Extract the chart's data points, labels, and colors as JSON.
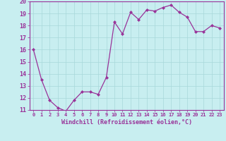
{
  "x": [
    0,
    1,
    2,
    3,
    4,
    5,
    6,
    7,
    8,
    9,
    10,
    11,
    12,
    13,
    14,
    15,
    16,
    17,
    18,
    19,
    20,
    21,
    22,
    23
  ],
  "y": [
    16.0,
    13.5,
    11.8,
    11.2,
    10.9,
    11.8,
    12.5,
    12.5,
    12.3,
    13.7,
    18.3,
    17.3,
    19.1,
    18.5,
    19.3,
    19.2,
    19.5,
    19.7,
    19.1,
    18.7,
    17.5,
    17.5,
    18.0,
    17.8
  ],
  "line_color": "#993399",
  "marker": "D",
  "marker_size": 2,
  "bg_color": "#c8eef0",
  "grid_color": "#a8d8da",
  "xlabel": "Windchill (Refroidissement éolien,°C)",
  "ylabel": "",
  "title": "",
  "xlim": [
    -0.5,
    23.5
  ],
  "ylim": [
    11,
    20
  ],
  "yticks": [
    11,
    12,
    13,
    14,
    15,
    16,
    17,
    18,
    19,
    20
  ],
  "xticks": [
    0,
    1,
    2,
    3,
    4,
    5,
    6,
    7,
    8,
    9,
    10,
    11,
    12,
    13,
    14,
    15,
    16,
    17,
    18,
    19,
    20,
    21,
    22,
    23
  ]
}
